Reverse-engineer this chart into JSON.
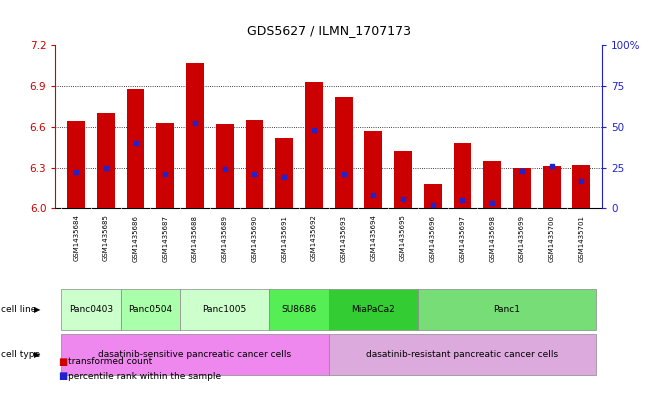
{
  "title": "GDS5627 / ILMN_1707173",
  "samples": [
    "GSM1435684",
    "GSM1435685",
    "GSM1435686",
    "GSM1435687",
    "GSM1435688",
    "GSM1435689",
    "GSM1435690",
    "GSM1435691",
    "GSM1435692",
    "GSM1435693",
    "GSM1435694",
    "GSM1435695",
    "GSM1435696",
    "GSM1435697",
    "GSM1435698",
    "GSM1435699",
    "GSM1435700",
    "GSM1435701"
  ],
  "transformed_counts": [
    6.64,
    6.7,
    6.88,
    6.63,
    7.07,
    6.62,
    6.65,
    6.52,
    6.93,
    6.82,
    6.57,
    6.42,
    6.18,
    6.48,
    6.35,
    6.3,
    6.31,
    6.32
  ],
  "percentile_ranks_pct": [
    22,
    25,
    40,
    21,
    52,
    24,
    21,
    19,
    48,
    21,
    8,
    6,
    2,
    5,
    3,
    23,
    26,
    17
  ],
  "ylim_left": [
    6.0,
    7.2
  ],
  "ylim_right": [
    0,
    100
  ],
  "yticks_left": [
    6.0,
    6.3,
    6.6,
    6.9,
    7.2
  ],
  "yticks_right": [
    0,
    25,
    50,
    75,
    100
  ],
  "bar_color": "#cc0000",
  "marker_color": "#2222cc",
  "bar_width": 0.6,
  "cell_line_data": [
    {
      "label": "Panc0403",
      "cols": [
        0,
        1
      ],
      "color": "#ccffcc"
    },
    {
      "label": "Panc0504",
      "cols": [
        2,
        3
      ],
      "color": "#aaffaa"
    },
    {
      "label": "Panc1005",
      "cols": [
        4,
        5,
        6
      ],
      "color": "#ccffcc"
    },
    {
      "label": "SU8686",
      "cols": [
        7,
        8
      ],
      "color": "#55ee55"
    },
    {
      "label": "MiaPaCa2",
      "cols": [
        9,
        10,
        11
      ],
      "color": "#33cc33"
    },
    {
      "label": "Panc1",
      "cols": [
        12,
        13,
        14,
        15,
        16,
        17
      ],
      "color": "#77dd77"
    }
  ],
  "cell_type_data": [
    {
      "label": "dasatinib-sensitive pancreatic cancer cells",
      "cols": [
        0,
        8
      ],
      "color": "#ee88ee"
    },
    {
      "label": "dasatinib-resistant pancreatic cancer cells",
      "cols": [
        9,
        17
      ],
      "color": "#ddaadd"
    }
  ],
  "hgrid_values": [
    6.3,
    6.6,
    6.9
  ],
  "bg_color": "#ffffff",
  "axis_color_left": "#cc0000",
  "axis_color_right": "#2222cc"
}
